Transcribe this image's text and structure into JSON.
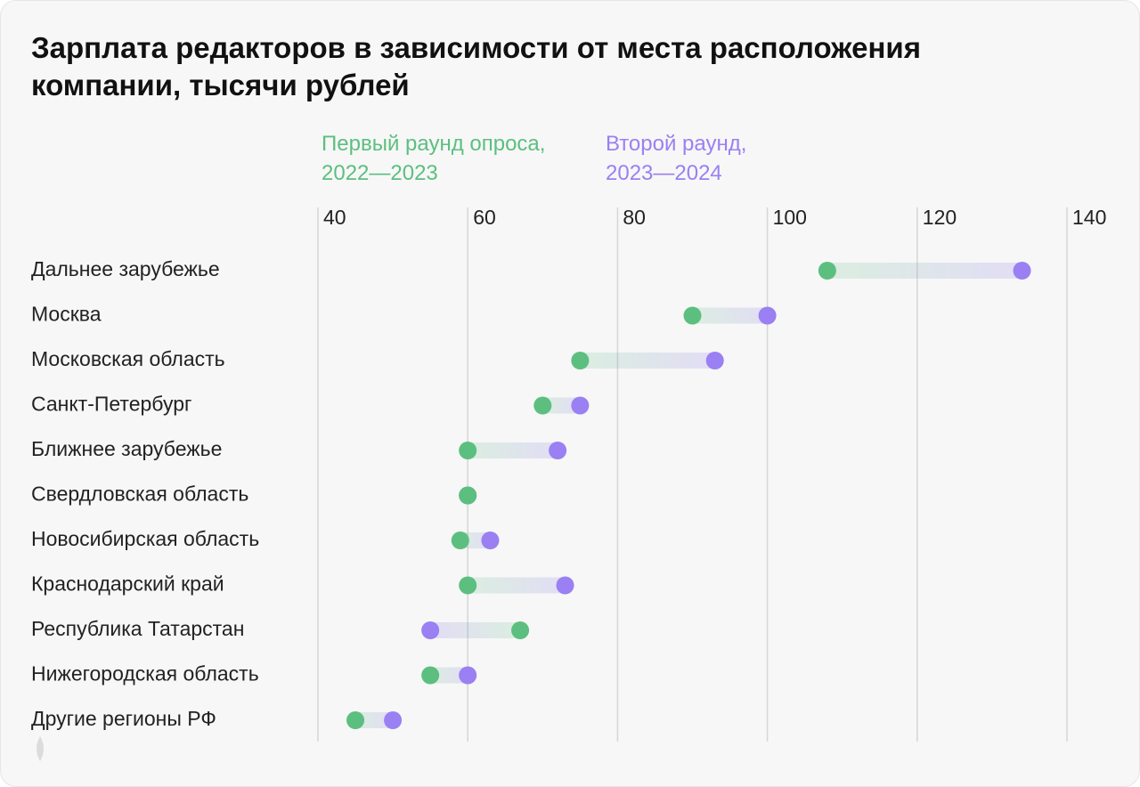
{
  "chart_data": {
    "type": "dumbbell",
    "title": "Зарплата редакторов в зависимости от места расположения компании, тысячи рублей",
    "categories": [
      "Дальнее зарубежье",
      "Москва",
      "Московская область",
      "Санкт-Петербург",
      "Ближнее зарубежье",
      "Свердловская область",
      "Новосибирская область",
      "Краснодарский край",
      "Республика Татарстан",
      "Нижегородская область",
      "Другие регионы РФ"
    ],
    "series": [
      {
        "name": "Первый раунд опроса, 2022—2023",
        "color": "#5cbf7f",
        "values": [
          108,
          90,
          75,
          70,
          60,
          60,
          59,
          60,
          67,
          55,
          45
        ]
      },
      {
        "name": "Второй раунд, 2023—2024",
        "color": "#9a80f2",
        "values": [
          134,
          100,
          93,
          75,
          72,
          60,
          63,
          73,
          55,
          60,
          50
        ]
      }
    ],
    "xlim": [
      38,
      150
    ],
    "xticks": [
      40,
      60,
      80,
      100,
      120,
      140
    ],
    "grid": true
  }
}
